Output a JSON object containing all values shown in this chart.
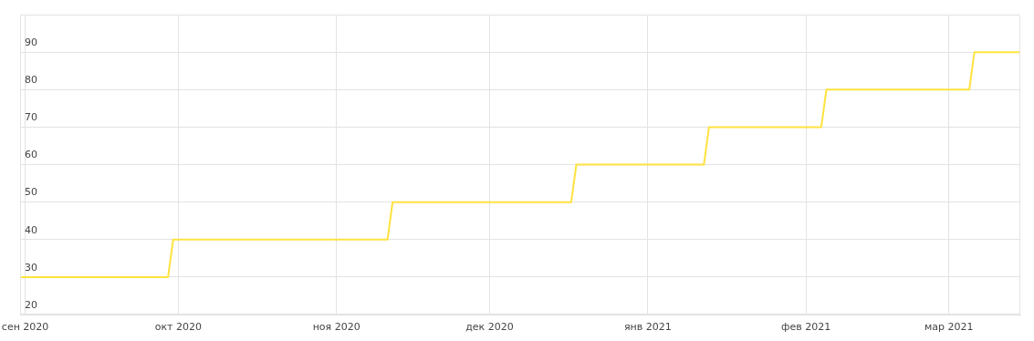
{
  "chart_data": {
    "type": "line",
    "x": [
      "2020-08-31",
      "2020-09-29",
      "2020-09-30",
      "2020-11-11",
      "2020-11-12",
      "2020-12-17",
      "2020-12-18",
      "2021-01-12",
      "2021-01-13",
      "2021-02-04",
      "2021-02-05",
      "2021-03-05",
      "2021-03-06",
      "2021-03-15"
    ],
    "series": [
      {
        "color": "#ffe23f",
        "values": [
          30,
          30,
          40,
          40,
          50,
          50,
          60,
          60,
          70,
          70,
          80,
          80,
          90,
          90
        ]
      }
    ],
    "xlim": [
      "2020-08-31",
      "2021-03-15"
    ],
    "xticks": [
      {
        "value": "2020-09-01",
        "label": "сен 2020"
      },
      {
        "value": "2020-10-01",
        "label": "окт 2020"
      },
      {
        "value": "2020-11-01",
        "label": "ноя 2020"
      },
      {
        "value": "2020-12-01",
        "label": "дек 2020"
      },
      {
        "value": "2021-01-01",
        "label": "янв 2021"
      },
      {
        "value": "2021-02-01",
        "label": "фев 2021"
      },
      {
        "value": "2021-03-01",
        "label": "мар 2021"
      }
    ],
    "ylim": [
      20,
      100
    ],
    "yticks": [
      20,
      30,
      40,
      50,
      60,
      70,
      80,
      90
    ],
    "grid": true,
    "legend": false,
    "marker": "none",
    "line_style": "solid"
  }
}
